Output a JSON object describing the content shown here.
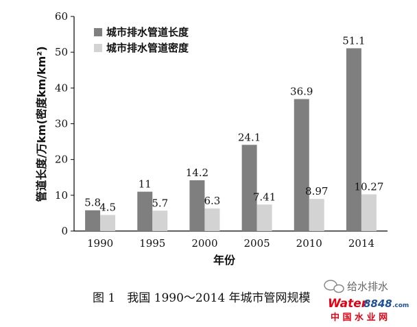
{
  "chart_data": {
    "type": "bar",
    "categories": [
      "1990",
      "1995",
      "2000",
      "2005",
      "2010",
      "2014"
    ],
    "series": [
      {
        "name": "城市排水管道长度",
        "values": [
          5.8,
          11,
          14.2,
          24.1,
          36.9,
          51.1
        ],
        "labels": [
          "5.8",
          "11",
          "14.2",
          "24.1",
          "36.9",
          "51.1"
        ],
        "color": "#7f7f7f"
      },
      {
        "name": "城市排水管道密度",
        "values": [
          4.5,
          5.7,
          6.3,
          7.41,
          8.97,
          10.27
        ],
        "labels": [
          "4.5",
          "5.7",
          "6.3",
          "7.41",
          "8.97",
          "10.27"
        ],
        "color": "#d3d3d3"
      }
    ],
    "title": "",
    "xlabel": "年份",
    "ylabel": "管道长度/万km(密度km/km²)",
    "ylim": [
      0,
      60
    ],
    "yticks": [
      "0",
      "10",
      "20",
      "30",
      "40",
      "50",
      "60"
    ],
    "grid": false,
    "legend_position": "top-left"
  },
  "caption": "图 1　我国 1990～2014 年城市管网规模",
  "watermark": {
    "wechat_name": "给水排水",
    "logo_word": "Water",
    "logo_num": "8848",
    "logo_dom": ".com",
    "logo_sub": "中 国 水 业 网",
    "logo_color": "#e60012",
    "logo_color2": "#1c4fa0"
  }
}
